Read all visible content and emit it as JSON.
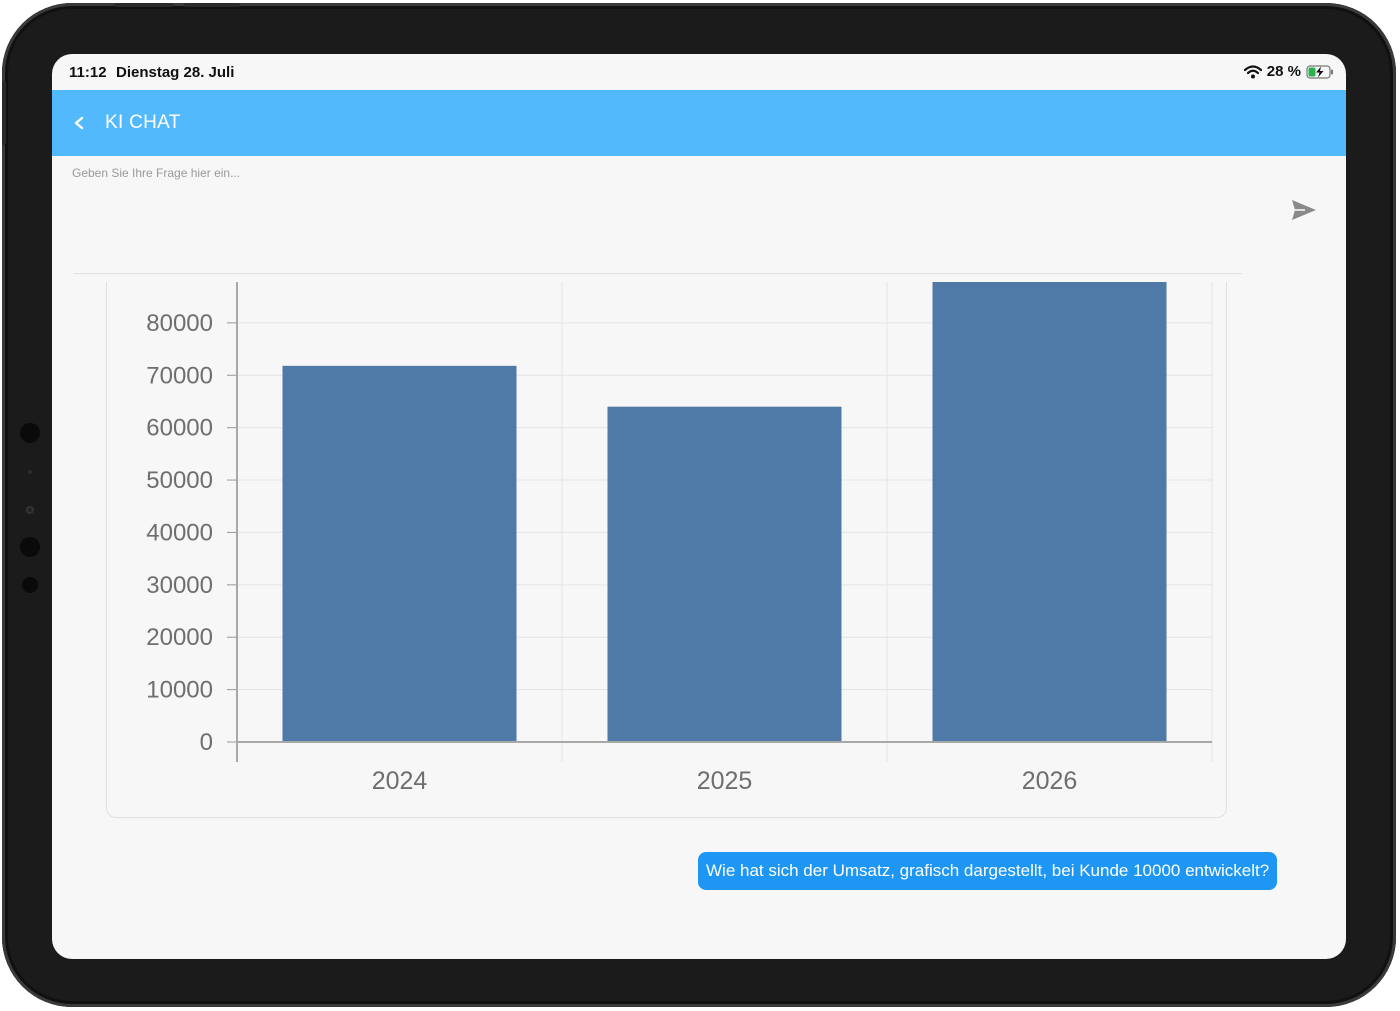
{
  "status_bar": {
    "time": "11:12",
    "date": "Dienstag 28. Juli",
    "battery": "28 %",
    "icons": [
      "wifi-icon",
      "battery-charging-icon"
    ]
  },
  "app_bar": {
    "title": "KI CHAT",
    "back_icon": "chevron-left-icon",
    "background": "#53b9fd"
  },
  "input": {
    "placeholder": "Geben Sie Ihre Frage hier ein...",
    "value": "",
    "send_icon": "send-icon"
  },
  "chart_data": {
    "type": "bar",
    "categories": [
      "2024",
      "2025",
      "2026"
    ],
    "values": [
      71800,
      64000,
      87800
    ],
    "yticks": [
      "0",
      "10000",
      "20000",
      "30000",
      "40000",
      "50000",
      "60000",
      "70000",
      "80000"
    ],
    "ylim": [
      0,
      87800
    ],
    "title": "",
    "xlabel": "",
    "ylabel": "",
    "grid": true,
    "bar_color": "#4f79a7"
  },
  "messages": [
    {
      "role": "user",
      "text": "Wie hat sich der Umsatz, grafisch dargestellt, bei Kunde 10000 entwickelt?",
      "color": "#1e96f3"
    }
  ]
}
